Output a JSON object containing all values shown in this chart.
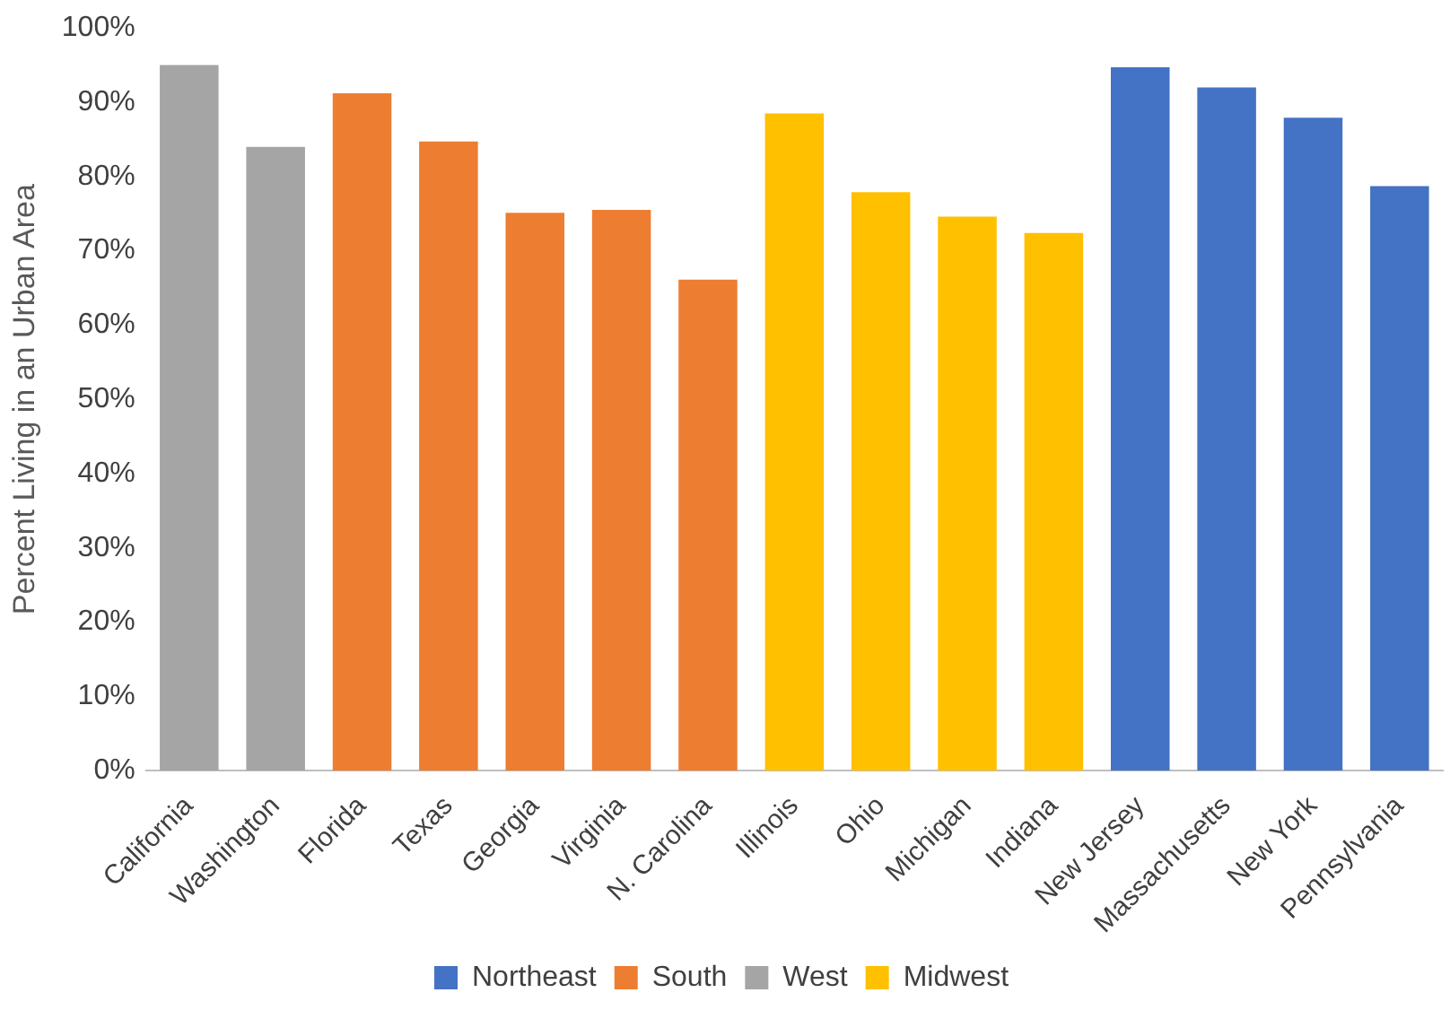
{
  "chart_data": {
    "type": "bar",
    "ylabel": "Percent Living in an Urban Area",
    "categories": [
      "California",
      "Washington",
      "Florida",
      "Texas",
      "Georgia",
      "Virginia",
      "N. Carolina",
      "Illinois",
      "Ohio",
      "Michigan",
      "Indiana",
      "New Jersey",
      "Massachusetts",
      "New York",
      "Pennsylvania"
    ],
    "series": [
      {
        "name": "Northeast",
        "color": "#4472c4",
        "values": [
          null,
          null,
          null,
          null,
          null,
          null,
          null,
          null,
          null,
          null,
          null,
          94.7,
          92,
          87.9,
          78.7
        ]
      },
      {
        "name": "South",
        "color": "#ed7d31",
        "values": [
          null,
          null,
          91.2,
          84.7,
          75.1,
          75.5,
          66.1,
          null,
          null,
          null,
          null,
          null,
          null,
          null,
          null
        ]
      },
      {
        "name": "West",
        "color": "#a5a5a5",
        "values": [
          95,
          84,
          null,
          null,
          null,
          null,
          null,
          null,
          null,
          null,
          null,
          null,
          null,
          null,
          null
        ]
      },
      {
        "name": "Midwest",
        "color": "#ffc000",
        "values": [
          null,
          null,
          null,
          null,
          null,
          null,
          null,
          88.5,
          77.9,
          74.6,
          72.4,
          null,
          null,
          null,
          null
        ]
      }
    ],
    "ylim": [
      0,
      100
    ],
    "yticks": [
      {
        "value": 0,
        "label": "0%"
      },
      {
        "value": 10,
        "label": "10%"
      },
      {
        "value": 20,
        "label": "20%"
      },
      {
        "value": 30,
        "label": "30%"
      },
      {
        "value": 40,
        "label": "40%"
      },
      {
        "value": 50,
        "label": "50%"
      },
      {
        "value": 60,
        "label": "60%"
      },
      {
        "value": 70,
        "label": "70%"
      },
      {
        "value": 80,
        "label": "80%"
      },
      {
        "value": 90,
        "label": "90%"
      },
      {
        "value": 100,
        "label": "100%"
      }
    ],
    "grid": false,
    "legend": "bottom"
  }
}
